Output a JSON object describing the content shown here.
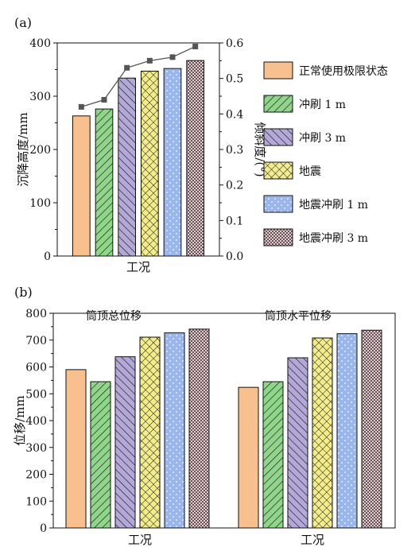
{
  "colors": {
    "normal": "#F9C08F",
    "scour1": "#90D68A",
    "scour3": "#B4A8D8",
    "quake": "#F2EC8A",
    "quake_scour1": "#9AB6F0",
    "quake_scour3": "#E7C8CC",
    "line": "#555555"
  },
  "legend": {
    "items": [
      {
        "label": "正常使用极限状态",
        "key": "normal",
        "pattern": "none"
      },
      {
        "label": "冲刷 1 m",
        "key": "scour1",
        "pattern": "hatch-right"
      },
      {
        "label": "冲刷 3 m",
        "key": "scour3",
        "pattern": "hatch-left"
      },
      {
        "label": "地震",
        "key": "quake",
        "pattern": "crosshatch"
      },
      {
        "label": "地震冲刷 1 m",
        "key": "quake_scour1",
        "pattern": "dots"
      },
      {
        "label": "地震冲刷 3 m",
        "key": "quake_scour3",
        "pattern": "check"
      }
    ]
  },
  "chart_data": [
    {
      "panel": "(a)",
      "type": "bar",
      "xlabel": "工况",
      "ylabel": "沉降高度/mm",
      "y2label": "倾斜度/(°)",
      "ylim": [
        0,
        400
      ],
      "yticks": [
        "0",
        "100",
        "200",
        "300",
        "400"
      ],
      "y2lim": [
        0,
        0.6
      ],
      "y2ticks": [
        "0.0",
        "0.1",
        "0.2",
        "0.3",
        "0.4",
        "0.5",
        "0.6"
      ],
      "series": [
        {
          "key": "normal",
          "value": 263
        },
        {
          "key": "scour1",
          "value": 276
        },
        {
          "key": "scour3",
          "value": 334
        },
        {
          "key": "quake",
          "value": 347
        },
        {
          "key": "quake_scour1",
          "value": 352
        },
        {
          "key": "quake_scour3",
          "value": 367
        }
      ],
      "line": {
        "type": "line",
        "axis": "right",
        "values": [
          0.42,
          0.44,
          0.53,
          0.55,
          0.56,
          0.59
        ]
      }
    },
    {
      "panel": "(b)",
      "type": "bar",
      "ylabel": "位移/mm",
      "ylim": [
        0,
        800
      ],
      "yticks": [
        "0",
        "100",
        "200",
        "300",
        "400",
        "500",
        "600",
        "700",
        "800"
      ],
      "groups": [
        {
          "title": "筒顶总位移",
          "xlabel": "工况",
          "values": [
            590,
            545,
            638,
            711,
            727,
            741
          ]
        },
        {
          "title": "筒顶水平位移",
          "xlabel": "工况",
          "values": [
            524,
            545,
            634,
            708,
            724,
            737
          ]
        }
      ],
      "series_keys": [
        "normal",
        "scour1",
        "scour3",
        "quake",
        "quake_scour1",
        "quake_scour3"
      ]
    }
  ]
}
